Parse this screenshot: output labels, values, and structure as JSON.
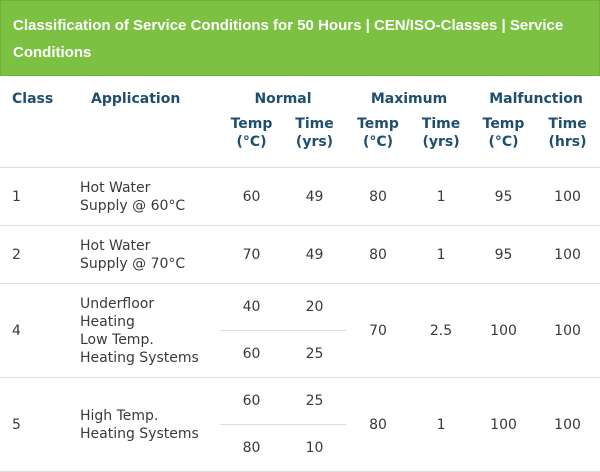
{
  "title": "Classification of Service Conditions for 50 Hours  |  CEN/ISO-Classes  |  Service Conditions",
  "headers": {
    "class": "Class",
    "application": "Application",
    "normal": "Normal",
    "maximum": "Maximum",
    "malfunction": "Malfunction",
    "temp_c": "Temp (°C)",
    "time_yrs": "Time (yrs)",
    "time_hrs": "Time (hrs)"
  },
  "rows": [
    {
      "class": "1",
      "application": [
        "Hot Water",
        "Supply @ 60°C"
      ],
      "normal_temp": "60",
      "normal_time": "49",
      "max_temp": "80",
      "max_time": "1",
      "mal_temp": "95",
      "mal_time": "100"
    },
    {
      "class": "2",
      "application": [
        "Hot Water",
        "Supply @ 70°C"
      ],
      "normal_temp": "70",
      "normal_time": "49",
      "max_temp": "80",
      "max_time": "1",
      "mal_temp": "95",
      "mal_time": "100"
    },
    {
      "class": "4",
      "application": [
        "Underfloor",
        "Heating",
        "Low Temp.",
        "Heating Systems"
      ],
      "normal": [
        {
          "temp": "40",
          "time": "20"
        },
        {
          "temp": "60",
          "time": "25"
        }
      ],
      "max_temp": "70",
      "max_time": "2.5",
      "mal_temp": "100",
      "mal_time": "100"
    },
    {
      "class": "5",
      "application": [
        "High Temp.",
        "Heating Systems"
      ],
      "normal": [
        {
          "temp": "60",
          "time": "25"
        },
        {
          "temp": "80",
          "time": "10"
        }
      ],
      "max_temp": "80",
      "max_time": "1",
      "mal_temp": "100",
      "mal_time": "100"
    }
  ]
}
